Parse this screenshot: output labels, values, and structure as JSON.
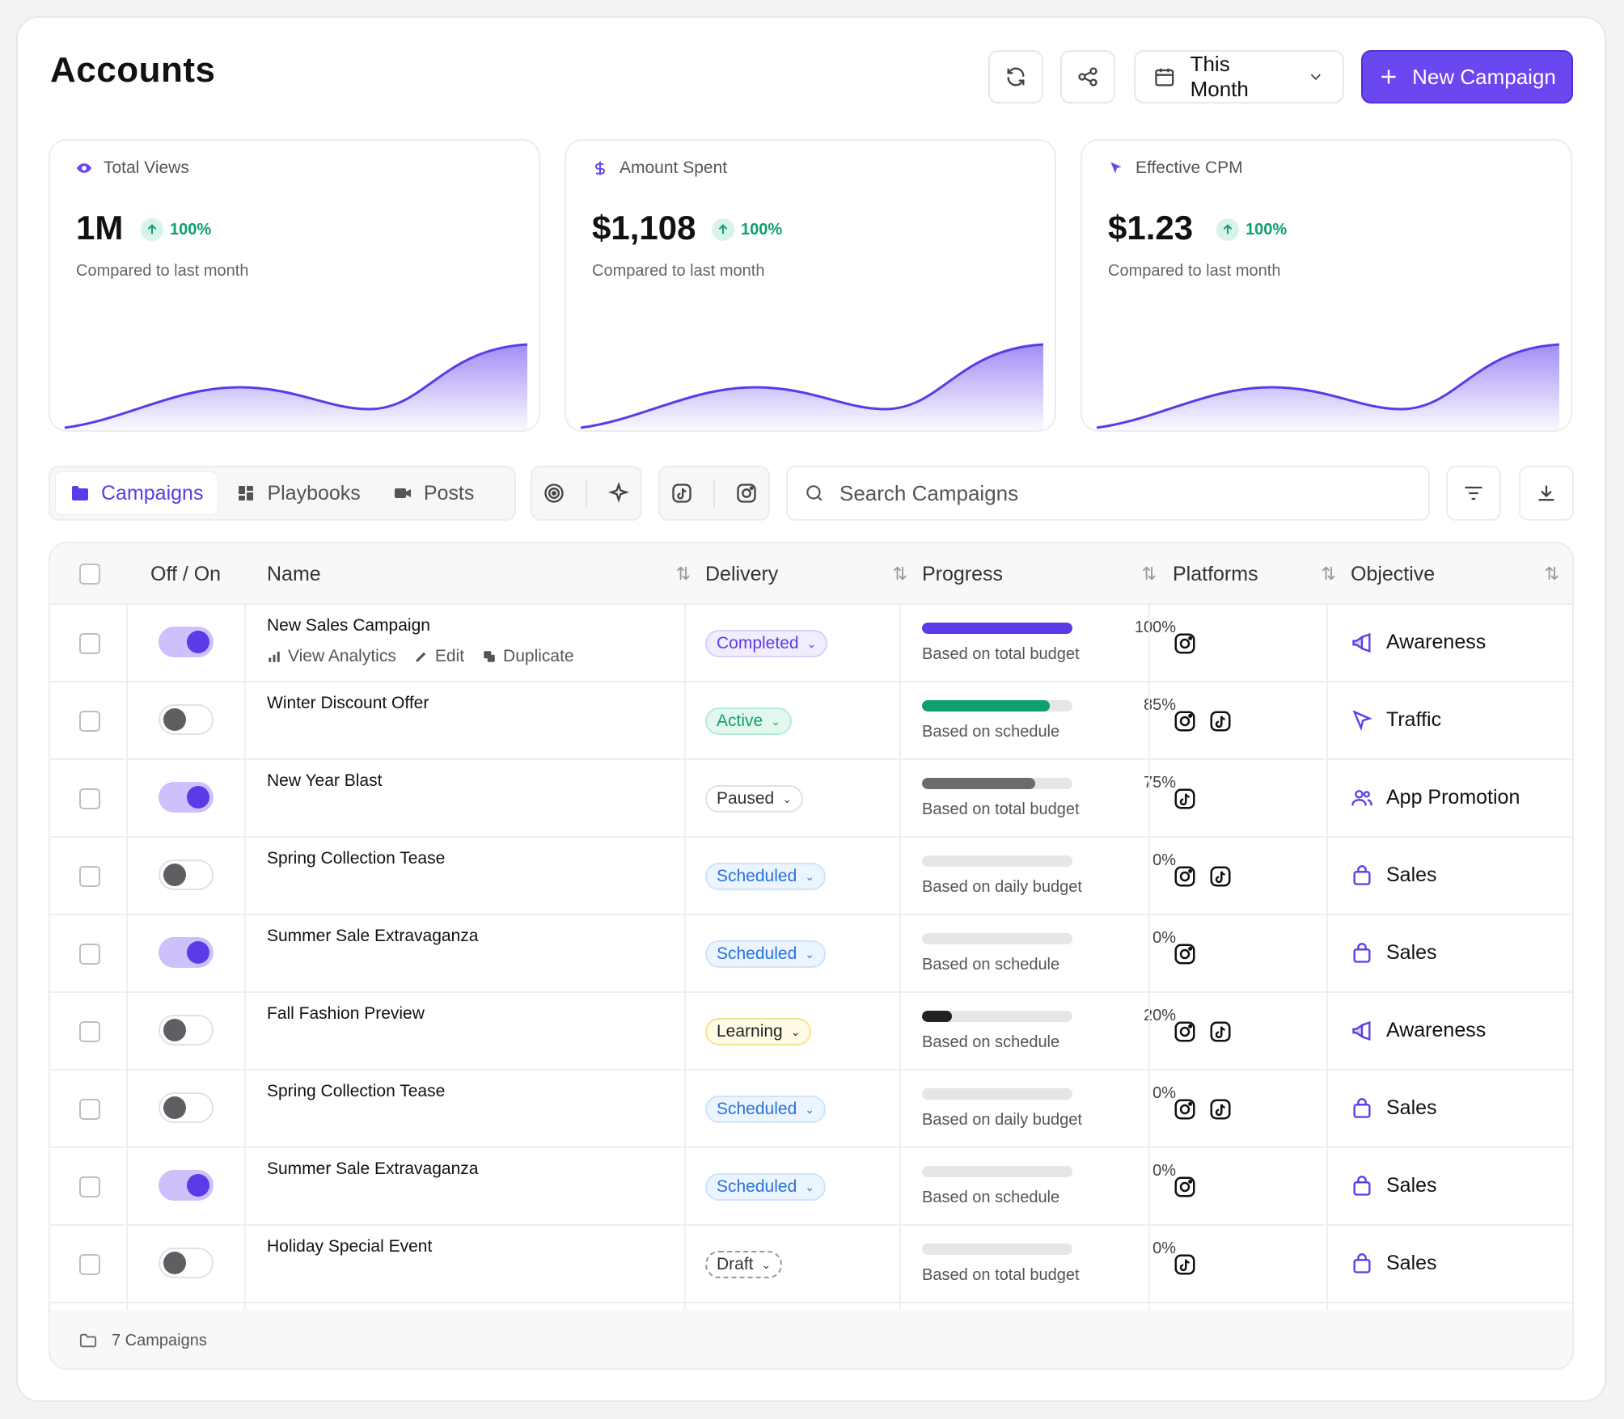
{
  "header": {
    "title": "Accounts",
    "period_label": "This Month",
    "new_button_label": "New Campaign",
    "icons": [
      "refresh-icon",
      "share-icon",
      "calendar-icon",
      "chevron-down-icon",
      "plus-icon"
    ]
  },
  "stats": [
    {
      "label": "Total Views",
      "icon": "eye-icon",
      "value": "1M",
      "change": "100%",
      "sub": "Compared to last month"
    },
    {
      "label": "Amount Spent",
      "icon": "dollar-icon",
      "value": "$1,108",
      "change": "100%",
      "sub": "Compared to last month"
    },
    {
      "label": "Effective CPM",
      "icon": "cursor-icon",
      "value": "$1.23",
      "change": "100%",
      "sub": "Compared to last month"
    }
  ],
  "tabs": [
    {
      "label": "Campaigns",
      "icon": "folder-icon",
      "active": true
    },
    {
      "label": "Playbooks",
      "icon": "grid-icon",
      "active": false
    },
    {
      "label": "Posts",
      "icon": "video-icon",
      "active": false
    }
  ],
  "search": {
    "placeholder": "Search Campaigns"
  },
  "table": {
    "columns": [
      "Off / On",
      "Name",
      "Delivery",
      "Progress",
      "Platforms",
      "Objective"
    ],
    "row_actions": [
      "View Analytics",
      "Edit",
      "Duplicate"
    ],
    "rows": [
      {
        "on": true,
        "name": "New Sales Campaign",
        "delivery": "Completed",
        "progress": 100,
        "progress_label": "100%",
        "basis": "Based on total budget",
        "platforms": [
          "instagram"
        ],
        "objective": "Awareness"
      },
      {
        "on": false,
        "name": "Winter Discount Offer",
        "delivery": "Active",
        "progress": 85,
        "progress_label": "85%",
        "basis": "Based on schedule",
        "platforms": [
          "instagram",
          "tiktok"
        ],
        "objective": "Traffic"
      },
      {
        "on": true,
        "name": "New Year Blast",
        "delivery": "Paused",
        "progress": 75,
        "progress_label": "75%",
        "basis": "Based on total budget",
        "platforms": [
          "tiktok"
        ],
        "objective": "App Promotion"
      },
      {
        "on": false,
        "name": "Spring Collection Tease",
        "delivery": "Scheduled",
        "progress": 0,
        "progress_label": "0%",
        "basis": "Based on daily budget",
        "platforms": [
          "instagram",
          "tiktok"
        ],
        "objective": "Sales"
      },
      {
        "on": true,
        "name": "Summer Sale Extravaganza",
        "delivery": "Scheduled",
        "progress": 0,
        "progress_label": "0%",
        "basis": "Based on schedule",
        "platforms": [
          "instagram"
        ],
        "objective": "Sales"
      },
      {
        "on": false,
        "name": "Fall Fashion Preview",
        "delivery": "Learning",
        "progress": 20,
        "progress_label": "20%",
        "basis": "Based on schedule",
        "platforms": [
          "instagram",
          "tiktok"
        ],
        "objective": "Awareness"
      },
      {
        "on": false,
        "name": "Spring Collection Tease",
        "delivery": "Scheduled",
        "progress": 0,
        "progress_label": "0%",
        "basis": "Based on daily budget",
        "platforms": [
          "instagram",
          "tiktok"
        ],
        "objective": "Sales"
      },
      {
        "on": true,
        "name": "Summer Sale Extravaganza",
        "delivery": "Scheduled",
        "progress": 0,
        "progress_label": "0%",
        "basis": "Based on schedule",
        "platforms": [
          "instagram"
        ],
        "objective": "Sales"
      },
      {
        "on": false,
        "name": "Holiday Special Event",
        "delivery": "Draft",
        "progress": 0,
        "progress_label": "0%",
        "basis": "Based on total budget",
        "platforms": [
          "tiktok"
        ],
        "objective": "Sales"
      }
    ],
    "footer": "7 Campaigns"
  },
  "colors": {
    "accent": "#6b47f0",
    "completed": "#5b3be8",
    "active": "#0e9f6e",
    "paused": "#6b6b70",
    "scheduled": "#2672d8",
    "learning": "#222222"
  }
}
